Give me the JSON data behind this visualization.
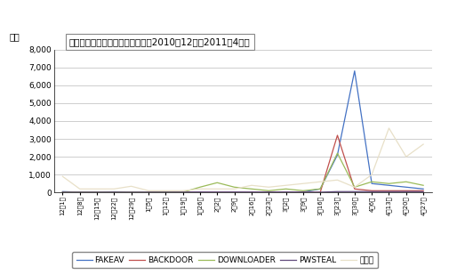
{
  "title": "不正プログラムの検知件数推移（2010年12月～2011年4月）",
  "ylabel": "個数",
  "ylim": [
    0,
    8000
  ],
  "yticks": [
    0,
    1000,
    2000,
    3000,
    4000,
    5000,
    6000,
    7000,
    8000
  ],
  "x_labels": [
    "12月1日",
    "12月8日",
    "12月15日",
    "12月22日",
    "12月29日",
    "1月5日",
    "1月12日",
    "1月19日",
    "1月26日",
    "2月2日",
    "2月9日",
    "2月16日",
    "2月23日",
    "3月2日",
    "3月9日",
    "3月16日",
    "3月23日",
    "3月30日",
    "4月6日",
    "4月13日",
    "4月20日",
    "4月27日"
  ],
  "series": {
    "FAKEAV": [
      50,
      20,
      30,
      40,
      30,
      20,
      30,
      20,
      30,
      20,
      30,
      20,
      30,
      20,
      30,
      200,
      2100,
      6800,
      500,
      400,
      300,
      200
    ],
    "BACKDOOR": [
      10,
      10,
      10,
      10,
      10,
      10,
      10,
      10,
      10,
      10,
      10,
      10,
      10,
      10,
      10,
      10,
      3200,
      200,
      100,
      100,
      100,
      100
    ],
    "DOWNLOADER": [
      30,
      30,
      30,
      20,
      30,
      20,
      30,
      20,
      300,
      550,
      300,
      200,
      100,
      200,
      100,
      200,
      2200,
      300,
      600,
      500,
      600,
      400
    ],
    "PWSTEAL": [
      20,
      20,
      20,
      20,
      20,
      20,
      20,
      20,
      20,
      20,
      20,
      20,
      20,
      20,
      20,
      20,
      50,
      50,
      50,
      50,
      50,
      50
    ],
    "sonota": [
      900,
      200,
      200,
      200,
      350,
      100,
      100,
      100,
      200,
      200,
      200,
      400,
      300,
      400,
      500,
      600,
      700,
      300,
      1000,
      3600,
      2000,
      2700
    ]
  },
  "series_labels": {
    "FAKEAV": "FAKEAV",
    "BACKDOOR": "BACKDOOR",
    "DOWNLOADER": "DOWNLOADER",
    "PWSTEAL": "PWSTEAL",
    "sonota": "その他"
  },
  "colors": {
    "FAKEAV": "#4472C4",
    "BACKDOOR": "#C0504D",
    "DOWNLOADER": "#9BBB59",
    "PWSTEAL": "#604A7B",
    "sonota": "#E8E0C8"
  },
  "bg_color": "#FFFFFF",
  "grid_color": "#BBBBBB"
}
